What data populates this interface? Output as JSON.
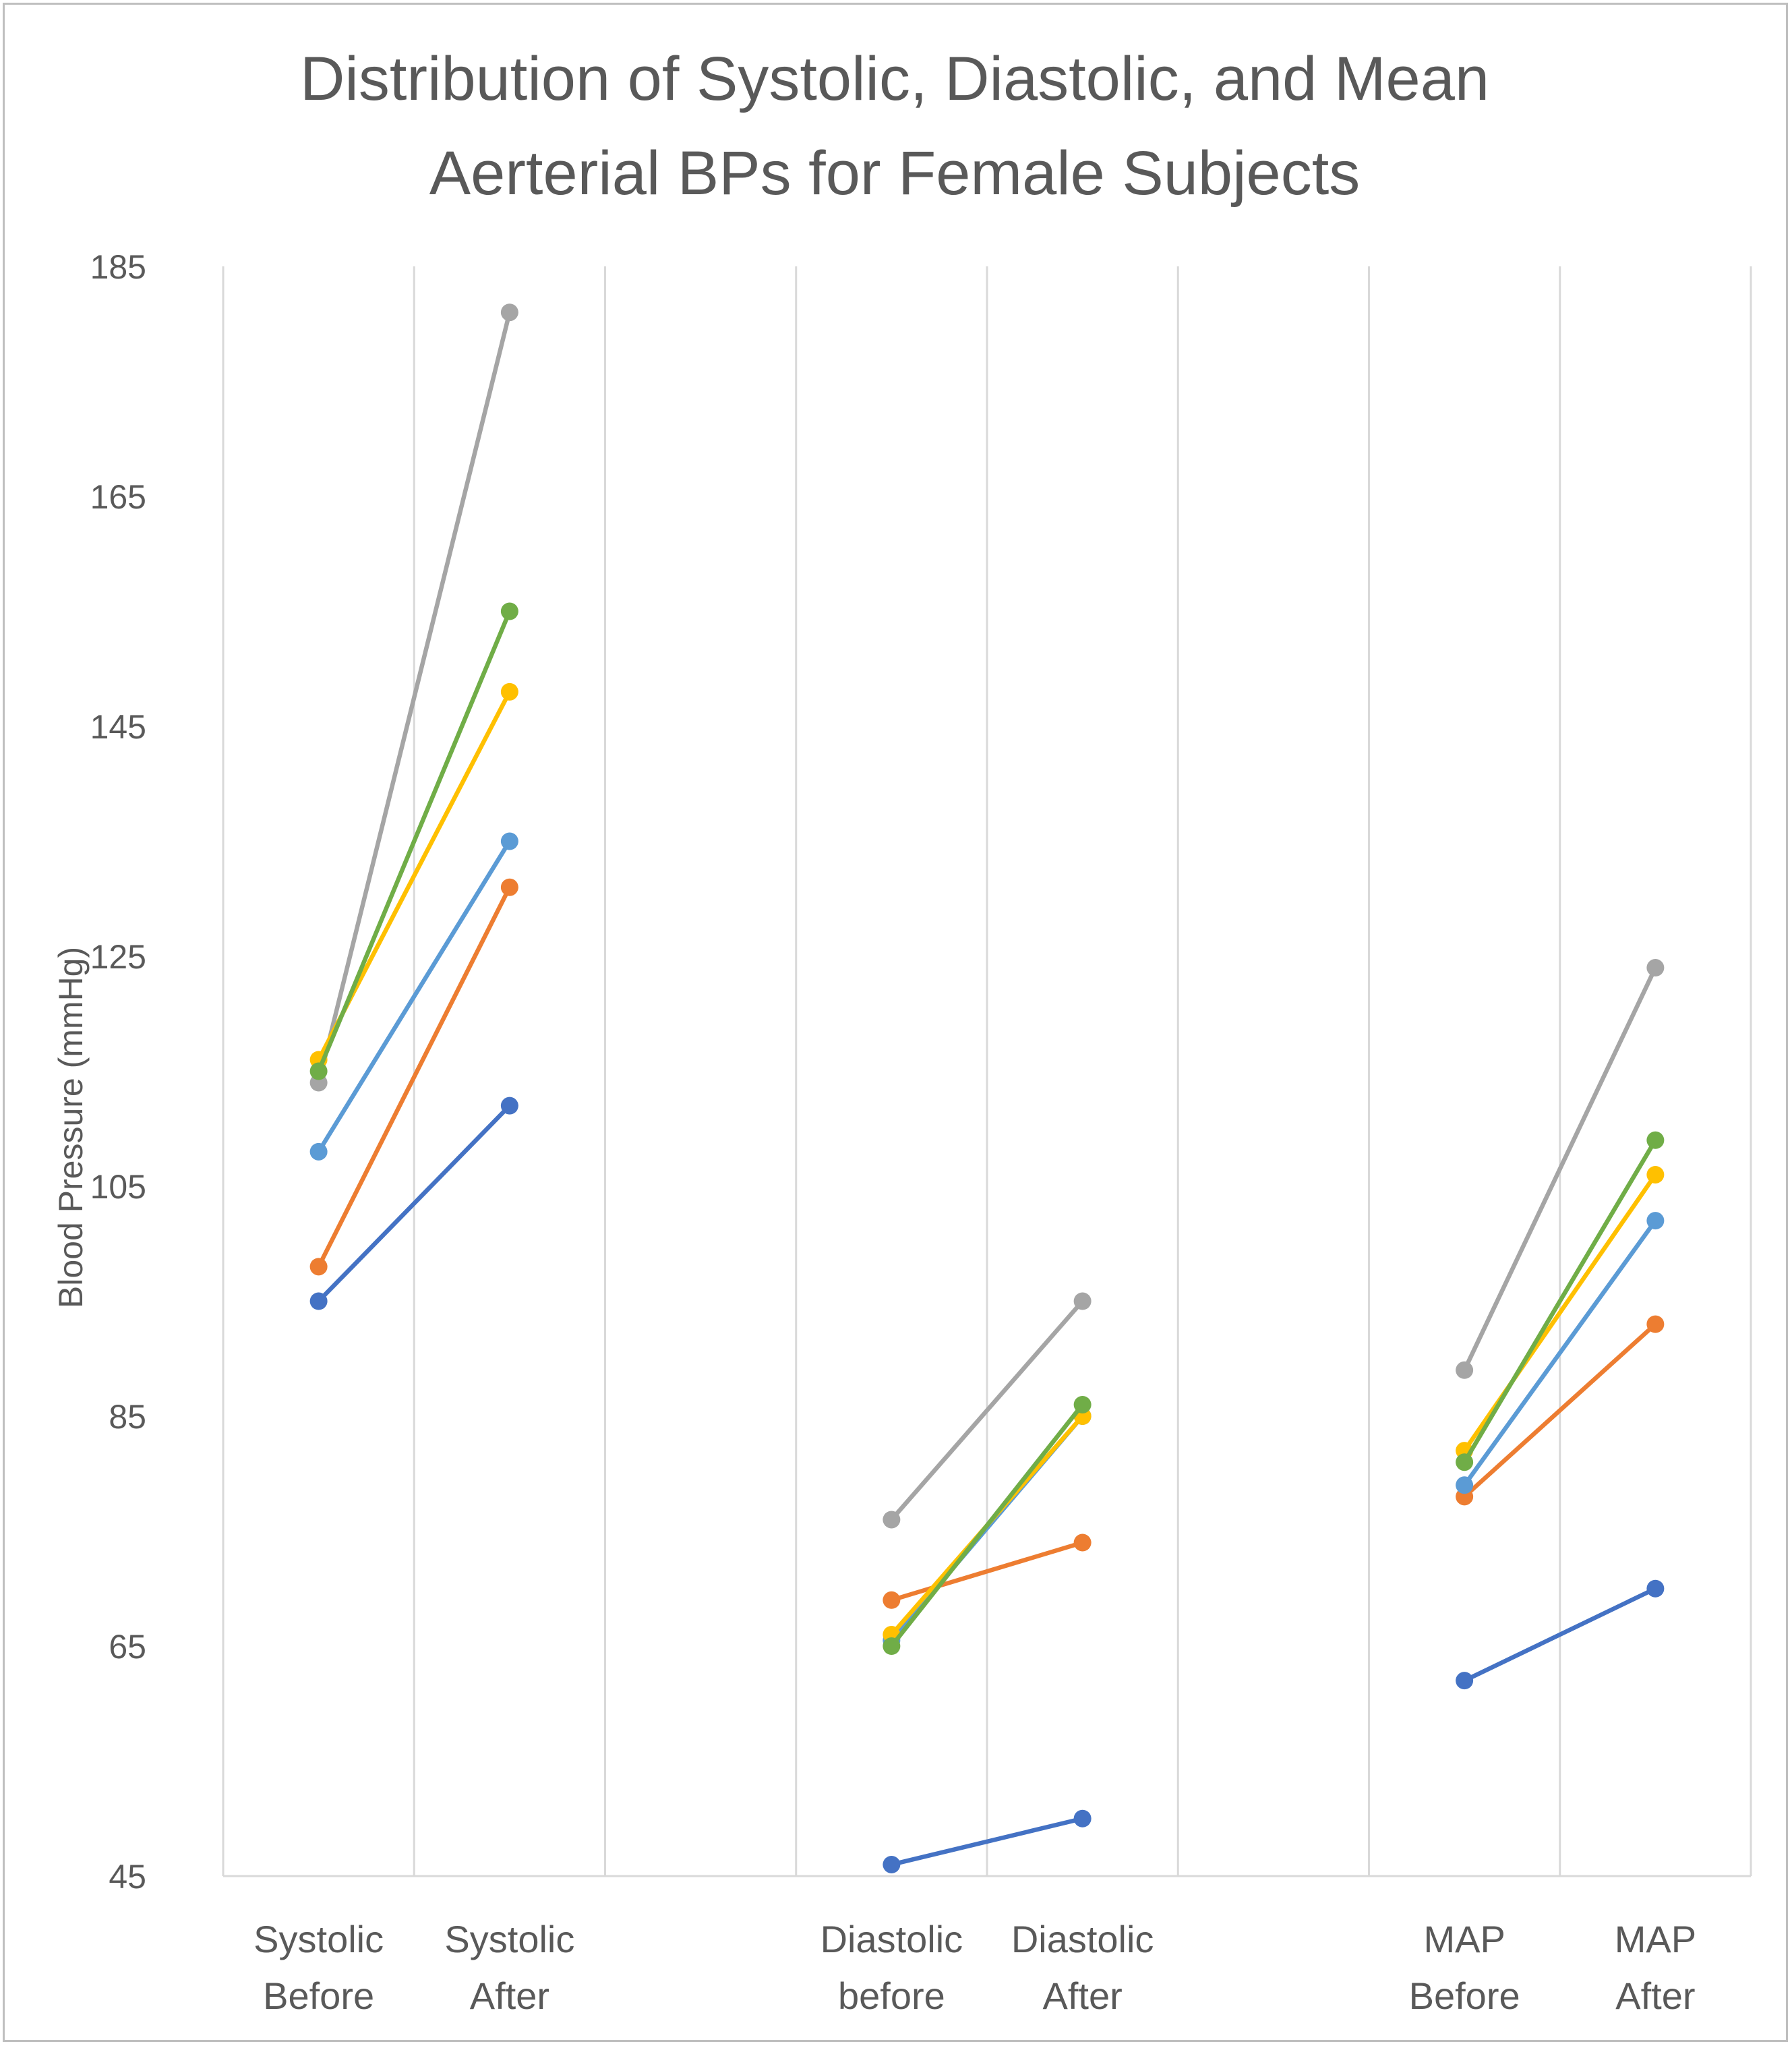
{
  "chart_data": {
    "type": "line",
    "title": [
      "Distribution of Systolic, Diastolic, and Mean",
      "Aerterial BPs for Female Subjects"
    ],
    "ylabel": "Blood Pressure (mmHg)",
    "xlabel": "",
    "ylim": [
      45,
      185
    ],
    "yticks": [
      "185",
      "165",
      "145",
      "125",
      "105",
      "85",
      "65",
      "45"
    ],
    "ytick_values": [
      185,
      165,
      145,
      125,
      105,
      85,
      65,
      45
    ],
    "grid": "vertical",
    "legend": "none",
    "slots": 8,
    "categories": [
      {
        "slot": 0,
        "lines": [
          "Systolic",
          "Before"
        ]
      },
      {
        "slot": 1,
        "lines": [
          "Systolic",
          "After"
        ]
      },
      {
        "slot": 3,
        "lines": [
          "Diastolic",
          "before"
        ]
      },
      {
        "slot": 4,
        "lines": [
          "Diastolic",
          "After"
        ]
      },
      {
        "slot": 6,
        "lines": [
          "MAP",
          "Before"
        ]
      },
      {
        "slot": 7,
        "lines": [
          "MAP",
          "After"
        ]
      }
    ],
    "groups": [
      {
        "slots": [
          0,
          1
        ]
      },
      {
        "slots": [
          3,
          4
        ]
      },
      {
        "slots": [
          6,
          7
        ]
      }
    ],
    "series": [
      {
        "color": "#A5A5A5",
        "values": [
          [
            114,
            181
          ],
          [
            76,
            95
          ],
          [
            89,
            124
          ]
        ]
      },
      {
        "color": "#4472C4",
        "values": [
          [
            95,
            112
          ],
          [
            46,
            50
          ],
          [
            62,
            70
          ]
        ]
      },
      {
        "color": "#ED7D31",
        "values": [
          [
            98,
            131
          ],
          [
            69,
            74
          ],
          [
            78,
            93
          ]
        ]
      },
      {
        "color": "#5B9BD5",
        "values": [
          [
            108,
            135
          ],
          [
            65.5,
            85
          ],
          [
            79,
            102
          ]
        ]
      },
      {
        "color": "#FFC000",
        "values": [
          [
            116,
            148
          ],
          [
            66,
            85
          ],
          [
            82,
            106
          ]
        ]
      },
      {
        "color": "#70AD47",
        "values": [
          [
            115,
            155
          ],
          [
            65,
            86
          ],
          [
            81,
            109
          ]
        ]
      }
    ]
  }
}
